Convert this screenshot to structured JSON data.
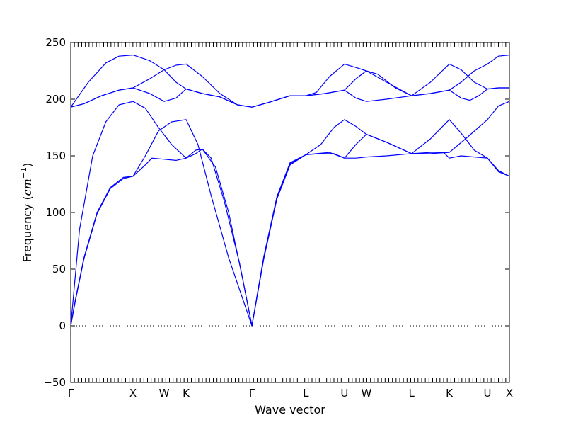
{
  "chart_data": {
    "type": "line",
    "xlabel": "Wave vector",
    "ylabel_text": "Frequency (",
    "ylabel_unit_base": "cm",
    "ylabel_unit_exp": "−1",
    "ylabel_close": ")",
    "ylim": [
      -50,
      250
    ],
    "yticks": [
      -50,
      0,
      50,
      100,
      150,
      200,
      250
    ],
    "zero_line": true,
    "grid": false,
    "xlim": [
      0,
      1
    ],
    "high_symmetry": [
      {
        "label": "Γ",
        "x": 0.0
      },
      {
        "label": "X",
        "x": 0.142
      },
      {
        "label": "W",
        "x": 0.213
      },
      {
        "label": "K",
        "x": 0.263
      },
      {
        "label": "Γ",
        "x": 0.413
      },
      {
        "label": "L",
        "x": 0.536
      },
      {
        "label": "U",
        "x": 0.624
      },
      {
        "label": "W",
        "x": 0.674
      },
      {
        "label": "L",
        "x": 0.777
      },
      {
        "label": "K",
        "x": 0.863
      },
      {
        "label": "U",
        "x": 0.95
      },
      {
        "label": "X",
        "x": 1.0
      }
    ],
    "minor_tick_count": 120,
    "series": [
      {
        "values": [
          [
            0.0,
            0
          ],
          [
            0.01,
            22
          ],
          [
            0.03,
            60
          ],
          [
            0.06,
            100
          ],
          [
            0.09,
            122
          ],
          [
            0.12,
            131
          ],
          [
            0.142,
            132
          ],
          [
            0.17,
            142
          ],
          [
            0.185,
            148
          ],
          [
            0.213,
            147
          ],
          [
            0.24,
            146
          ],
          [
            0.263,
            148
          ],
          [
            0.285,
            155
          ],
          [
            0.3,
            156
          ],
          [
            0.32,
            148
          ],
          [
            0.35,
            110
          ],
          [
            0.385,
            55
          ],
          [
            0.413,
            0
          ],
          [
            0.44,
            60
          ],
          [
            0.47,
            113
          ],
          [
            0.5,
            143
          ],
          [
            0.536,
            151
          ],
          [
            0.56,
            152
          ],
          [
            0.59,
            153
          ],
          [
            0.61,
            150
          ],
          [
            0.624,
            148
          ],
          [
            0.65,
            148
          ],
          [
            0.674,
            149
          ],
          [
            0.72,
            150
          ],
          [
            0.777,
            152
          ],
          [
            0.82,
            153
          ],
          [
            0.85,
            153
          ],
          [
            0.863,
            148
          ],
          [
            0.89,
            150
          ],
          [
            0.92,
            149
          ],
          [
            0.95,
            148
          ],
          [
            0.975,
            137
          ],
          [
            1.0,
            132
          ]
        ]
      },
      {
        "values": [
          [
            0.0,
            0
          ],
          [
            0.01,
            21
          ],
          [
            0.03,
            59
          ],
          [
            0.06,
            99
          ],
          [
            0.09,
            121
          ],
          [
            0.12,
            130
          ],
          [
            0.142,
            132
          ],
          [
            0.17,
            150
          ],
          [
            0.2,
            172
          ],
          [
            0.23,
            180
          ],
          [
            0.263,
            182
          ],
          [
            0.29,
            160
          ],
          [
            0.32,
            115
          ],
          [
            0.36,
            60
          ],
          [
            0.413,
            0
          ],
          [
            0.44,
            59
          ],
          [
            0.47,
            112
          ],
          [
            0.5,
            142
          ],
          [
            0.536,
            151
          ],
          [
            0.57,
            152
          ],
          [
            0.6,
            152
          ],
          [
            0.624,
            148
          ],
          [
            0.65,
            160
          ],
          [
            0.674,
            169
          ],
          [
            0.72,
            162
          ],
          [
            0.777,
            152
          ],
          [
            0.82,
            165
          ],
          [
            0.863,
            182
          ],
          [
            0.89,
            170
          ],
          [
            0.92,
            155
          ],
          [
            0.95,
            148
          ],
          [
            0.975,
            136
          ],
          [
            1.0,
            132
          ]
        ]
      },
      {
        "values": [
          [
            0.0,
            0
          ],
          [
            0.02,
            85
          ],
          [
            0.05,
            150
          ],
          [
            0.08,
            180
          ],
          [
            0.11,
            195
          ],
          [
            0.142,
            198
          ],
          [
            0.17,
            192
          ],
          [
            0.2,
            175
          ],
          [
            0.23,
            160
          ],
          [
            0.263,
            148
          ],
          [
            0.285,
            152
          ],
          [
            0.3,
            156
          ],
          [
            0.33,
            140
          ],
          [
            0.36,
            100
          ],
          [
            0.39,
            45
          ],
          [
            0.413,
            0
          ],
          [
            0.44,
            61
          ],
          [
            0.47,
            114
          ],
          [
            0.5,
            144
          ],
          [
            0.536,
            151
          ],
          [
            0.57,
            160
          ],
          [
            0.6,
            175
          ],
          [
            0.624,
            182
          ],
          [
            0.65,
            176
          ],
          [
            0.674,
            169
          ],
          [
            0.72,
            162
          ],
          [
            0.777,
            152
          ],
          [
            0.82,
            152
          ],
          [
            0.863,
            153
          ],
          [
            0.9,
            165
          ],
          [
            0.95,
            182
          ],
          [
            0.975,
            194
          ],
          [
            1.0,
            198
          ]
        ]
      },
      {
        "values": [
          [
            0.0,
            193
          ],
          [
            0.03,
            196
          ],
          [
            0.07,
            203
          ],
          [
            0.11,
            208
          ],
          [
            0.142,
            210
          ],
          [
            0.18,
            218
          ],
          [
            0.213,
            226
          ],
          [
            0.24,
            230
          ],
          [
            0.263,
            231
          ],
          [
            0.3,
            220
          ],
          [
            0.34,
            205
          ],
          [
            0.38,
            195
          ],
          [
            0.413,
            193
          ],
          [
            0.45,
            197
          ],
          [
            0.5,
            203
          ],
          [
            0.536,
            203
          ],
          [
            0.56,
            206
          ],
          [
            0.59,
            220
          ],
          [
            0.624,
            231
          ],
          [
            0.65,
            228
          ],
          [
            0.674,
            225
          ],
          [
            0.7,
            222
          ],
          [
            0.74,
            210
          ],
          [
            0.777,
            203
          ],
          [
            0.82,
            215
          ],
          [
            0.863,
            231
          ],
          [
            0.89,
            226
          ],
          [
            0.92,
            215
          ],
          [
            0.95,
            209
          ],
          [
            0.975,
            210
          ],
          [
            1.0,
            210
          ]
        ]
      },
      {
        "values": [
          [
            0.0,
            193
          ],
          [
            0.03,
            196
          ],
          [
            0.07,
            203
          ],
          [
            0.11,
            208
          ],
          [
            0.142,
            210
          ],
          [
            0.18,
            205
          ],
          [
            0.213,
            198
          ],
          [
            0.24,
            201
          ],
          [
            0.263,
            209
          ],
          [
            0.3,
            205
          ],
          [
            0.34,
            202
          ],
          [
            0.38,
            195
          ],
          [
            0.413,
            193
          ],
          [
            0.45,
            197
          ],
          [
            0.5,
            203
          ],
          [
            0.536,
            203
          ],
          [
            0.58,
            205
          ],
          [
            0.624,
            208
          ],
          [
            0.65,
            201
          ],
          [
            0.674,
            198
          ],
          [
            0.72,
            200
          ],
          [
            0.777,
            203
          ],
          [
            0.82,
            205
          ],
          [
            0.863,
            208
          ],
          [
            0.89,
            201
          ],
          [
            0.91,
            199
          ],
          [
            0.93,
            203
          ],
          [
            0.95,
            209
          ],
          [
            0.975,
            210
          ],
          [
            1.0,
            210
          ]
        ]
      },
      {
        "values": [
          [
            0.0,
            193
          ],
          [
            0.04,
            215
          ],
          [
            0.08,
            232
          ],
          [
            0.11,
            238
          ],
          [
            0.142,
            239
          ],
          [
            0.18,
            234
          ],
          [
            0.213,
            226
          ],
          [
            0.24,
            215
          ],
          [
            0.263,
            209
          ],
          [
            0.3,
            205
          ],
          [
            0.34,
            202
          ],
          [
            0.38,
            195
          ],
          [
            0.413,
            193
          ],
          [
            0.45,
            197
          ],
          [
            0.5,
            203
          ],
          [
            0.536,
            203
          ],
          [
            0.58,
            205
          ],
          [
            0.624,
            208
          ],
          [
            0.65,
            218
          ],
          [
            0.674,
            225
          ],
          [
            0.72,
            215
          ],
          [
            0.777,
            203
          ],
          [
            0.82,
            205
          ],
          [
            0.863,
            208
          ],
          [
            0.89,
            215
          ],
          [
            0.92,
            225
          ],
          [
            0.95,
            231
          ],
          [
            0.975,
            238
          ],
          [
            1.0,
            239
          ]
        ]
      }
    ]
  }
}
